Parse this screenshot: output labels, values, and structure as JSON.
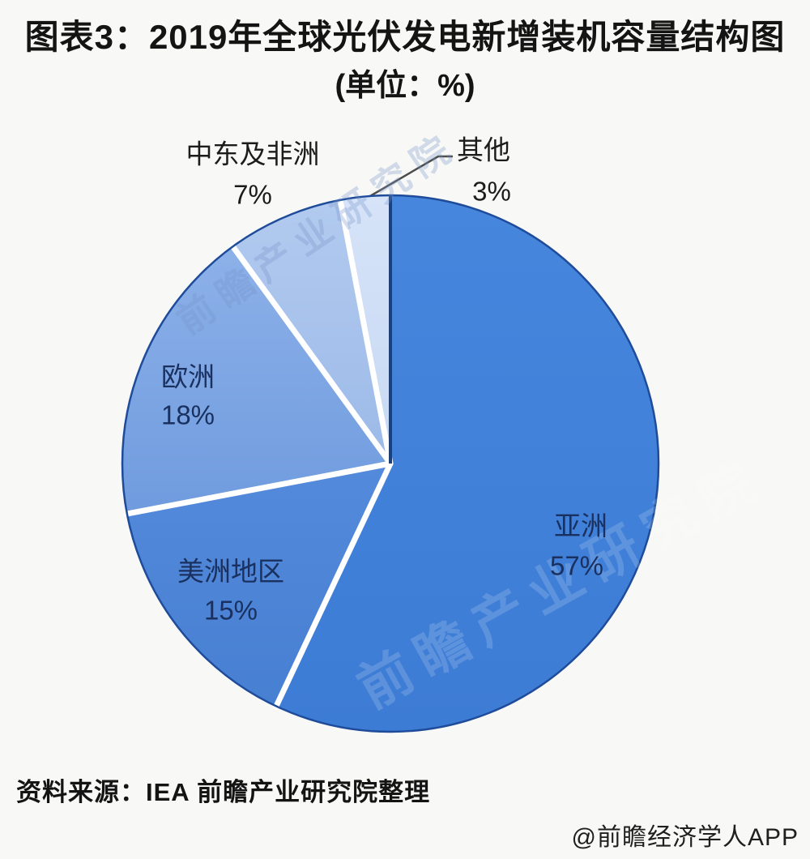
{
  "title": {
    "line1": "图表3：2019年全球光伏发电新增装机容量结构图",
    "line2": "(单位：%)"
  },
  "chart_data": {
    "type": "pie",
    "title": "2019年全球光伏发电新增装机容量结构图",
    "unit": "%",
    "start_angle_deg": 0,
    "direction": "clockwise",
    "legend_position": "none",
    "segments": [
      {
        "id": "asia",
        "label": "亚洲",
        "value": 57,
        "pct_label": "57%",
        "color": "#3d7cd5",
        "color_top": "#4686dd",
        "label_placement": "inside"
      },
      {
        "id": "americas",
        "label": "美洲地区",
        "value": 15,
        "pct_label": "15%",
        "color": "#477fd2",
        "color_top": "#548adb",
        "label_placement": "inside"
      },
      {
        "id": "europe",
        "label": "欧洲",
        "value": 18,
        "pct_label": "18%",
        "color": "#6f9bde",
        "color_top": "#8db1e9",
        "label_placement": "inside"
      },
      {
        "id": "middle-east-africa",
        "label": "中东及非洲",
        "value": 7,
        "pct_label": "7%",
        "color": "#9cbae8",
        "color_top": "#b2caef",
        "label_placement": "outside"
      },
      {
        "id": "other",
        "label": "其他",
        "value": 3,
        "pct_label": "3%",
        "color": "#c7d9f3",
        "color_top": "#d6e3f8",
        "label_placement": "outside"
      }
    ],
    "style_colors": {
      "separator": "#ffffff",
      "rim": "#1f4c9a",
      "start_edge": "#1d4176",
      "leader_line": "#4d4d4d"
    }
  },
  "watermark": {
    "text": "前瞻产业研究院"
  },
  "source": {
    "text": "资料来源：IEA 前瞻产业研究院整理"
  },
  "credit": {
    "text": "@前瞻经济学人APP"
  }
}
